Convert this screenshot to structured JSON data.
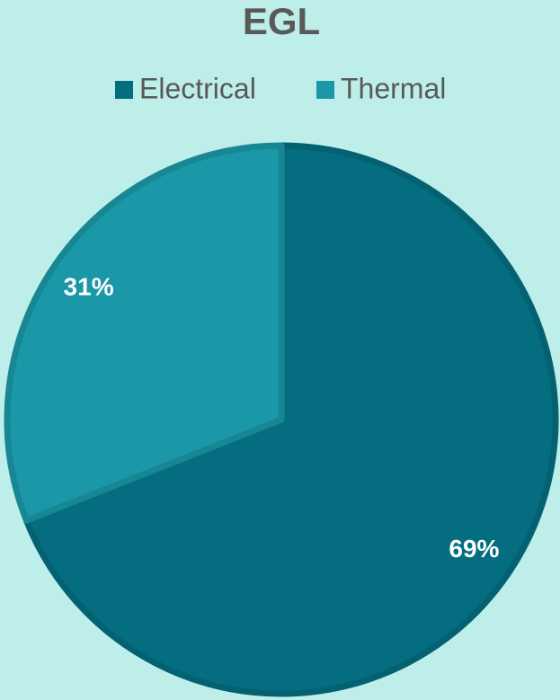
{
  "chart_data": {
    "type": "pie",
    "title": "EGL",
    "categories": [
      "Electrical",
      "Thermal"
    ],
    "values": [
      69,
      31
    ],
    "value_labels": [
      "69%",
      "31%"
    ],
    "colors": [
      "#046e80",
      "#1b98a7"
    ],
    "legend": "top"
  }
}
